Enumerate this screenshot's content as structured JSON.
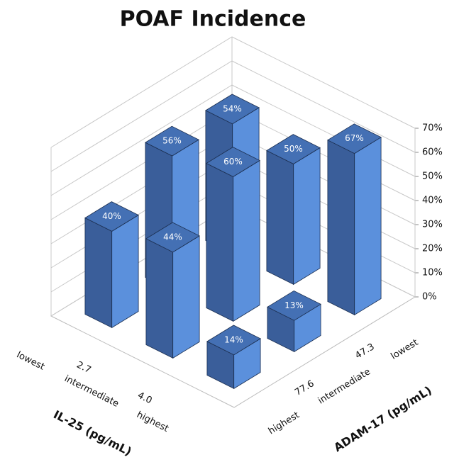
{
  "chart_data": {
    "type": "bar3d",
    "title": "POAF Incidence",
    "x_label": "IL-25 (pg/mL)",
    "x_tick_labels": [
      "lowest",
      "2.7",
      "intermediate",
      "4.0",
      "highest"
    ],
    "y_label": "ADAM-17 (pg/mL)",
    "y_tick_labels": [
      "highest",
      "77.6",
      "intermediate",
      "47.3",
      "lowest"
    ],
    "rows": [
      {
        "values": [
          40,
          44,
          14
        ],
        "value_labels": [
          "40%",
          "44%",
          "14%"
        ]
      },
      {
        "values": [
          56,
          60,
          13
        ],
        "value_labels": [
          "56%",
          "60%",
          "13%"
        ]
      },
      {
        "values": [
          54,
          50,
          67
        ],
        "value_labels": [
          "54%",
          "50%",
          "67%"
        ]
      }
    ],
    "zlim": [
      0,
      70
    ],
    "zticks": [
      {
        "value": 0,
        "label": "0%"
      },
      {
        "value": 10,
        "label": "10%"
      },
      {
        "value": 20,
        "label": "20%"
      },
      {
        "value": 30,
        "label": "30%"
      },
      {
        "value": 40,
        "label": "40%"
      },
      {
        "value": 50,
        "label": "50%"
      },
      {
        "value": 60,
        "label": "60%"
      },
      {
        "value": 70,
        "label": "70%"
      }
    ],
    "colors": {
      "top": "#4470b4",
      "left": "#3a5e9a",
      "right": "#5b90dc"
    },
    "grid": true
  }
}
